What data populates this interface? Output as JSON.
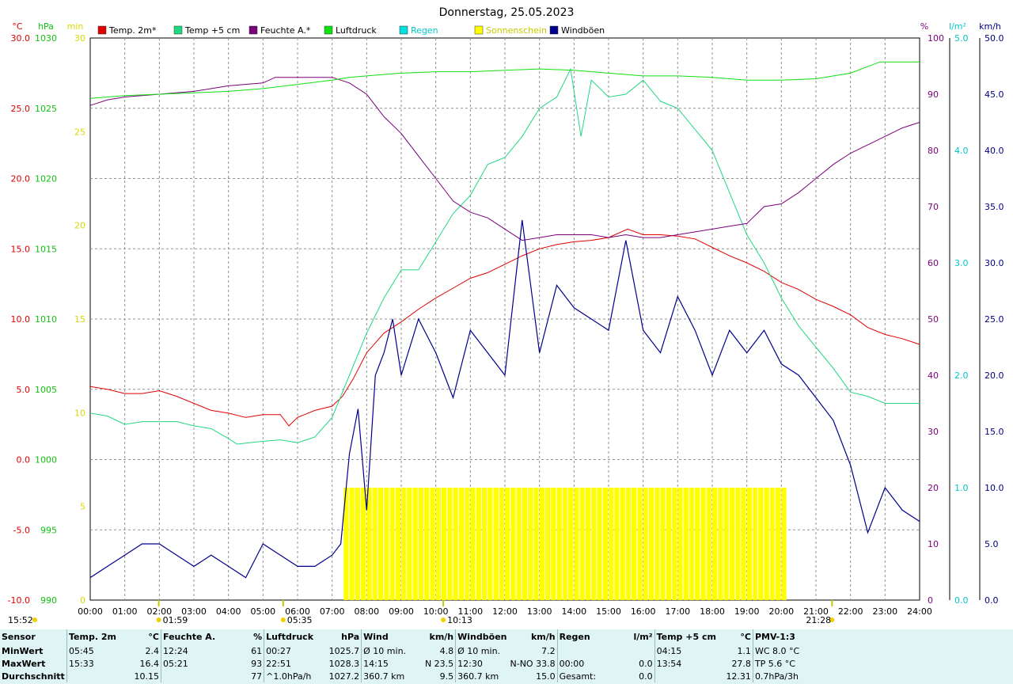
{
  "title": "Donnerstag, 25.05.2023",
  "colors": {
    "temp2m": "#e00000",
    "temp5cm": "#20d880",
    "feuchte": "#7a007a",
    "luftdruck": "#10e010",
    "regen": "#00e0e0",
    "sonne": "#ffff00",
    "windboeen": "#00008c",
    "grid": "#909090"
  },
  "units": {
    "left1": "°C",
    "left2": "hPa",
    "left3": "min",
    "right1": "%",
    "right2": "l/m²",
    "right3": "km/h"
  },
  "legend": [
    {
      "label": "Temp. 2m*",
      "color": "#e00000"
    },
    {
      "label": "Temp +5 cm",
      "color": "#20d880"
    },
    {
      "label": "Feuchte A.*",
      "color": "#7a007a"
    },
    {
      "label": "Luftdruck",
      "color": "#10e010"
    },
    {
      "label": "Regen",
      "color": "#00e0e0"
    },
    {
      "label": "Sonnenschein",
      "color": "#ffff00"
    },
    {
      "label": "Windböen",
      "color": "#00008c"
    }
  ],
  "axis_ticks": {
    "temp_c": [
      "30.0",
      "25.0",
      "20.0",
      "15.0",
      "10.0",
      "5.0",
      "0.0",
      "-5.0",
      "-10.0"
    ],
    "hpa": [
      "1030",
      "1025",
      "1020",
      "1015",
      "1010",
      "1005",
      "1000",
      "995",
      "990"
    ],
    "min": [
      "30",
      "25",
      "20",
      "15",
      "10",
      "5",
      "0"
    ],
    "pct": [
      "100",
      "90",
      "80",
      "70",
      "60",
      "50",
      "40",
      "30",
      "20",
      "10",
      "0"
    ],
    "lm2": [
      "5.0",
      "4.0",
      "3.0",
      "2.0",
      "1.0",
      "0.0"
    ],
    "kmh": [
      "50.0",
      "45.0",
      "40.0",
      "35.0",
      "30.0",
      "25.0",
      "20.0",
      "15.0",
      "10.0",
      "5.0",
      "0.0"
    ],
    "hours": [
      "00:00",
      "01:00",
      "02:00",
      "03:00",
      "04:00",
      "05:00",
      "06:00",
      "07:00",
      "08:00",
      "09:00",
      "10:00",
      "11:00",
      "12:00",
      "13:00",
      "14:00",
      "15:00",
      "16:00",
      "17:00",
      "18:00",
      "19:00",
      "20:00",
      "21:00",
      "22:00",
      "23:00",
      "24:00"
    ]
  },
  "sun_markers": [
    {
      "time": "01:59",
      "label": "01:59"
    },
    {
      "time": "05:35",
      "label": "05:35"
    },
    {
      "time": "10:13",
      "label": "10:13"
    },
    {
      "time": "15:52",
      "label": "15:52"
    },
    {
      "time": "21:28",
      "label": "21:28"
    }
  ],
  "chart_data": {
    "type": "line",
    "x_range_hours": [
      0,
      24
    ],
    "series": [
      {
        "name": "Temp. 2m*",
        "axis": "°C",
        "ylim": [
          -10,
          30
        ],
        "points": [
          [
            0,
            5.2
          ],
          [
            0.5,
            5.0
          ],
          [
            1,
            4.7
          ],
          [
            1.5,
            4.7
          ],
          [
            2,
            4.9
          ],
          [
            2.5,
            4.5
          ],
          [
            3,
            4.0
          ],
          [
            3.5,
            3.5
          ],
          [
            4,
            3.3
          ],
          [
            4.5,
            3.0
          ],
          [
            5,
            3.2
          ],
          [
            5.5,
            3.2
          ],
          [
            5.75,
            2.4
          ],
          [
            6,
            3.0
          ],
          [
            6.5,
            3.5
          ],
          [
            7,
            3.8
          ],
          [
            7.3,
            4.5
          ],
          [
            7.6,
            5.7
          ],
          [
            8,
            7.6
          ],
          [
            8.5,
            9.0
          ],
          [
            9,
            9.8
          ],
          [
            9.5,
            10.7
          ],
          [
            10,
            11.5
          ],
          [
            10.5,
            12.2
          ],
          [
            11,
            12.9
          ],
          [
            11.5,
            13.3
          ],
          [
            12,
            13.9
          ],
          [
            12.5,
            14.5
          ],
          [
            13,
            15.0
          ],
          [
            13.5,
            15.3
          ],
          [
            14,
            15.5
          ],
          [
            14.5,
            15.6
          ],
          [
            15,
            15.8
          ],
          [
            15.55,
            16.4
          ],
          [
            16,
            16.0
          ],
          [
            16.5,
            16.0
          ],
          [
            17,
            15.9
          ],
          [
            17.5,
            15.7
          ],
          [
            18,
            15.1
          ],
          [
            18.5,
            14.5
          ],
          [
            19,
            14.0
          ],
          [
            19.5,
            13.4
          ],
          [
            20,
            12.6
          ],
          [
            20.5,
            12.1
          ],
          [
            21,
            11.4
          ],
          [
            21.5,
            10.9
          ],
          [
            22,
            10.3
          ],
          [
            22.5,
            9.4
          ],
          [
            23,
            8.9
          ],
          [
            23.5,
            8.6
          ],
          [
            24,
            8.2
          ]
        ]
      },
      {
        "name": "Temp +5 cm",
        "axis": "°C",
        "ylim": [
          -10,
          30
        ],
        "points": [
          [
            0,
            3.3
          ],
          [
            0.5,
            3.1
          ],
          [
            1,
            2.5
          ],
          [
            1.5,
            2.7
          ],
          [
            2,
            2.7
          ],
          [
            2.5,
            2.7
          ],
          [
            3,
            2.4
          ],
          [
            3.5,
            2.2
          ],
          [
            4,
            1.5
          ],
          [
            4.25,
            1.1
          ],
          [
            5,
            1.3
          ],
          [
            5.5,
            1.4
          ],
          [
            6,
            1.2
          ],
          [
            6.5,
            1.6
          ],
          [
            7,
            3.0
          ],
          [
            7.5,
            6.0
          ],
          [
            8,
            9.0
          ],
          [
            8.5,
            11.5
          ],
          [
            9,
            13.5
          ],
          [
            9.5,
            13.5
          ],
          [
            10,
            15.5
          ],
          [
            10.5,
            17.5
          ],
          [
            11,
            18.8
          ],
          [
            11.5,
            21.0
          ],
          [
            12,
            21.5
          ],
          [
            12.5,
            23.0
          ],
          [
            13,
            25.0
          ],
          [
            13.5,
            25.8
          ],
          [
            13.9,
            27.8
          ],
          [
            14.2,
            23.0
          ],
          [
            14.5,
            27.0
          ],
          [
            15,
            25.8
          ],
          [
            15.5,
            26.0
          ],
          [
            16,
            27.0
          ],
          [
            16.5,
            25.5
          ],
          [
            17,
            25.0
          ],
          [
            17.5,
            23.5
          ],
          [
            18,
            22.0
          ],
          [
            18.5,
            19.0
          ],
          [
            19,
            16.0
          ],
          [
            19.5,
            14.0
          ],
          [
            20,
            11.5
          ],
          [
            20.5,
            9.5
          ],
          [
            21,
            8.0
          ],
          [
            21.5,
            6.5
          ],
          [
            22,
            4.8
          ],
          [
            22.5,
            4.5
          ],
          [
            23,
            4.0
          ],
          [
            24,
            4.0
          ]
        ]
      },
      {
        "name": "Feuchte A.*",
        "axis": "%",
        "ylim": [
          0,
          100
        ],
        "points": [
          [
            0,
            88
          ],
          [
            0.5,
            89
          ],
          [
            1,
            89.5
          ],
          [
            2,
            90
          ],
          [
            3,
            90.5
          ],
          [
            4,
            91.5
          ],
          [
            5,
            92
          ],
          [
            5.35,
            93
          ],
          [
            6,
            93
          ],
          [
            7,
            93
          ],
          [
            7.5,
            92
          ],
          [
            8,
            90
          ],
          [
            8.5,
            86
          ],
          [
            9,
            83
          ],
          [
            9.5,
            79
          ],
          [
            10,
            75
          ],
          [
            10.5,
            71
          ],
          [
            11,
            69
          ],
          [
            11.5,
            68
          ],
          [
            12,
            66
          ],
          [
            12.5,
            64
          ],
          [
            13,
            64.5
          ],
          [
            13.5,
            65
          ],
          [
            14,
            65
          ],
          [
            14.5,
            65
          ],
          [
            15,
            64.5
          ],
          [
            15.5,
            65
          ],
          [
            16,
            64.5
          ],
          [
            16.5,
            64.5
          ],
          [
            17,
            65
          ],
          [
            17.5,
            65.5
          ],
          [
            18,
            66
          ],
          [
            18.5,
            66.5
          ],
          [
            19,
            67
          ],
          [
            19.5,
            70
          ],
          [
            20,
            70.5
          ],
          [
            20.5,
            72.5
          ],
          [
            21,
            75
          ],
          [
            21.5,
            77.5
          ],
          [
            22,
            79.5
          ],
          [
            22.5,
            81
          ],
          [
            23,
            82.5
          ],
          [
            23.5,
            84
          ],
          [
            24,
            85
          ]
        ]
      },
      {
        "name": "Luftdruck",
        "axis": "hPa",
        "ylim": [
          990,
          1030
        ],
        "points": [
          [
            0,
            1025.7
          ],
          [
            1,
            1025.9
          ],
          [
            2,
            1026.0
          ],
          [
            3,
            1026.1
          ],
          [
            4,
            1026.2
          ],
          [
            5,
            1026.4
          ],
          [
            6,
            1026.7
          ],
          [
            7,
            1027.0
          ],
          [
            7.5,
            1027.2
          ],
          [
            8,
            1027.3
          ],
          [
            9,
            1027.5
          ],
          [
            10,
            1027.6
          ],
          [
            11,
            1027.6
          ],
          [
            12,
            1027.7
          ],
          [
            13,
            1027.8
          ],
          [
            14,
            1027.7
          ],
          [
            15,
            1027.5
          ],
          [
            16,
            1027.3
          ],
          [
            17,
            1027.3
          ],
          [
            18,
            1027.2
          ],
          [
            19,
            1027.0
          ],
          [
            20,
            1027.0
          ],
          [
            21,
            1027.1
          ],
          [
            22,
            1027.5
          ],
          [
            22.85,
            1028.3
          ],
          [
            23,
            1028.3
          ],
          [
            24,
            1028.3
          ]
        ]
      },
      {
        "name": "Windböen",
        "axis": "km/h",
        "ylim": [
          0,
          50
        ],
        "points": [
          [
            0,
            2
          ],
          [
            0.5,
            3
          ],
          [
            1,
            4
          ],
          [
            1.5,
            5
          ],
          [
            2,
            5
          ],
          [
            2.5,
            4
          ],
          [
            3,
            3
          ],
          [
            3.5,
            4
          ],
          [
            4,
            3
          ],
          [
            4.5,
            2
          ],
          [
            5,
            5
          ],
          [
            5.5,
            4
          ],
          [
            6,
            3
          ],
          [
            6.5,
            3
          ],
          [
            7,
            4
          ],
          [
            7.25,
            5
          ],
          [
            7.5,
            13
          ],
          [
            7.75,
            17
          ],
          [
            8,
            8
          ],
          [
            8.25,
            20
          ],
          [
            8.5,
            22
          ],
          [
            8.75,
            25
          ],
          [
            9,
            20
          ],
          [
            9.5,
            25
          ],
          [
            10,
            22
          ],
          [
            10.5,
            18
          ],
          [
            11,
            24
          ],
          [
            11.5,
            22
          ],
          [
            12,
            20
          ],
          [
            12.5,
            33.8
          ],
          [
            13,
            22
          ],
          [
            13.5,
            28
          ],
          [
            14,
            26
          ],
          [
            14.5,
            25
          ],
          [
            15,
            24
          ],
          [
            15.5,
            32
          ],
          [
            16,
            24
          ],
          [
            16.5,
            22
          ],
          [
            17,
            27
          ],
          [
            17.5,
            24
          ],
          [
            18,
            20
          ],
          [
            18.5,
            24
          ],
          [
            19,
            22
          ],
          [
            19.5,
            24
          ],
          [
            20,
            21
          ],
          [
            20.5,
            20
          ],
          [
            21,
            18
          ],
          [
            21.5,
            16
          ],
          [
            22,
            12
          ],
          [
            22.5,
            6
          ],
          [
            23,
            10
          ],
          [
            23.5,
            8
          ],
          [
            24,
            7
          ]
        ]
      }
    ],
    "sunshine_minutes": {
      "axis": "min",
      "ylim": [
        0,
        30
      ],
      "start": "07:20",
      "end": "20:10",
      "value": 6
    },
    "regen_lm2": {
      "axis": "l/m²",
      "value": 0.0
    }
  },
  "stats": {
    "headers": {
      "sensor": "Sensor",
      "t2m": "Temp. 2m",
      "t2m_unit": "°C",
      "feuchte": "Feuchte A.",
      "feuchte_unit": "%",
      "luft": "Luftdruck",
      "luft_unit": "hPa",
      "wind": "Wind",
      "wind_unit": "km/h",
      "boeen": "Windböen",
      "boeen_unit": "km/h",
      "regen": "Regen",
      "regen_unit": "l/m²",
      "t5": "Temp +5 cm",
      "t5_unit": "°C",
      "pmv": "PMV-1:3"
    },
    "rows": [
      {
        "label": "MinWert",
        "t2m_time": "05:45",
        "t2m_val": "2.4",
        "feuchte_time": "12:24",
        "feuchte_val": "61",
        "luft_time": "00:27",
        "luft_val": "1025.7",
        "wind_a": "Ø 10 min.",
        "wind_val": "4.8",
        "boeen_a": "Ø 10 min.",
        "boeen_val": "7.2",
        "regen_a": "",
        "regen_val": "",
        "t5_time": "04:15",
        "t5_val": "1.1",
        "pmv": "WC 8.0 °C"
      },
      {
        "label": "MaxWert",
        "t2m_time": "15:33",
        "t2m_val": "16.4",
        "feuchte_time": "05:21",
        "feuchte_val": "93",
        "luft_time": "22:51",
        "luft_val": "1028.3",
        "wind_a": "14:15",
        "wind_b": "N 23.5",
        "boeen_a": "12:30",
        "boeen_b": "N-NO 33.8",
        "regen_a": "00:00",
        "regen_val": "0.0",
        "t5_time": "13:54",
        "t5_val": "27.8",
        "pmv": "TP 5.6 °C"
      },
      {
        "label": "Durchschnitt",
        "t2m_time": "",
        "t2m_val": "10.15",
        "feuchte_time": "",
        "feuchte_val": "77",
        "luft_time": "^1.0hPa/h",
        "luft_val": "1027.2",
        "wind_a": "360.7 km",
        "wind_val": "9.5",
        "boeen_a": "360.7 km",
        "boeen_val": "15.0",
        "regen_a": "Gesamt:",
        "regen_val": "0.0",
        "t5_time": "",
        "t5_val": "12.31",
        "pmv": "0.7hPa/3h"
      }
    ]
  }
}
